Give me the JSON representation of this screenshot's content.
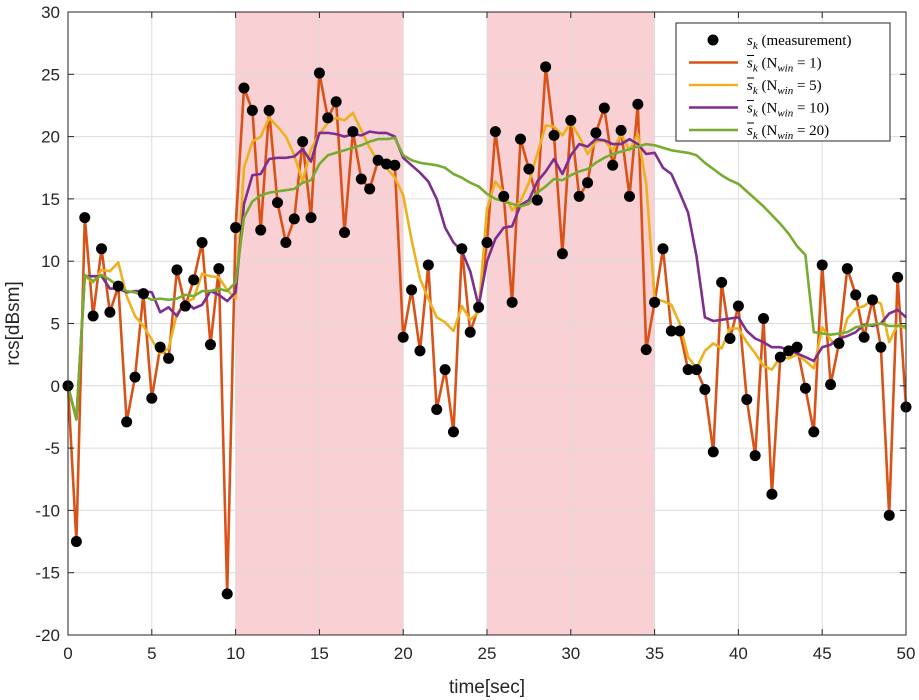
{
  "chart_data": {
    "type": "line",
    "title": "",
    "xlabel": "time[sec]",
    "ylabel": "rcs[dBsm]",
    "xlim": [
      0,
      50
    ],
    "ylim": [
      -20,
      30
    ],
    "xticks": [
      0,
      5,
      10,
      15,
      20,
      25,
      30,
      35,
      40,
      45,
      50
    ],
    "yticks": [
      -20,
      -15,
      -10,
      -5,
      0,
      5,
      10,
      15,
      20,
      25,
      30
    ],
    "grid": true,
    "legend_position": "top-right",
    "shaded_intervals": [
      [
        10,
        20
      ],
      [
        25,
        35
      ]
    ],
    "shade_color": "#f9d0d3",
    "series": [
      {
        "name": "s_k (measurement)",
        "legend_main": "s",
        "legend_sub": "k",
        "legend_rest": "(measurement)",
        "kind": "scatter",
        "color": "#000000",
        "x": [
          0,
          0.5,
          1,
          1.5,
          2,
          2.5,
          3,
          3.5,
          4,
          4.5,
          5,
          5.5,
          6,
          6.5,
          7,
          7.5,
          8,
          8.5,
          9,
          9.5,
          10,
          10.5,
          11,
          11.5,
          12,
          12.5,
          13,
          13.5,
          14,
          14.5,
          15,
          15.5,
          16,
          16.5,
          17,
          17.5,
          18,
          18.5,
          19,
          19.5,
          20,
          20.5,
          21,
          21.5,
          22,
          22.5,
          23,
          23.5,
          24,
          24.5,
          25,
          25.5,
          26,
          26.5,
          27,
          27.5,
          28,
          28.5,
          29,
          29.5,
          30,
          30.5,
          31,
          31.5,
          32,
          32.5,
          33,
          33.5,
          34,
          34.5,
          35,
          35.5,
          36,
          36.5,
          37,
          37.5,
          38,
          38.5,
          39,
          39.5,
          40,
          40.5,
          41,
          41.5,
          42,
          42.5,
          43,
          43.5,
          44,
          44.5,
          45,
          45.5,
          46,
          46.5,
          47,
          47.5,
          48,
          48.5,
          49,
          49.5,
          50
        ],
        "y": [
          0,
          -12.5,
          13.5,
          5.6,
          11,
          5.9,
          8,
          -2.9,
          0.7,
          7.4,
          -1,
          3.1,
          2.2,
          9.3,
          6.4,
          8.5,
          11.5,
          3.3,
          9.4,
          -16.7,
          12.7,
          23.9,
          22.1,
          12.5,
          22.1,
          14.7,
          11.5,
          13.4,
          19.6,
          13.5,
          25.1,
          21.5,
          22.8,
          12.3,
          20.4,
          16.6,
          15.8,
          18.1,
          17.8,
          17.7,
          3.9,
          7.7,
          2.8,
          9.7,
          -1.9,
          1.3,
          -3.7,
          11,
          4.3,
          6.3,
          11.5,
          20.4,
          15.2,
          6.7,
          19.8,
          17.4,
          14.9,
          25.6,
          20.1,
          10.6,
          21.3,
          15.2,
          16.3,
          20.3,
          22.3,
          17.7,
          20.5,
          15.2,
          22.6,
          2.9,
          6.7,
          11,
          4.4,
          4.4,
          1.3,
          1.3,
          -0.3,
          -5.3,
          8.3,
          3.8,
          6.4,
          -1.1,
          -5.6,
          5.4,
          -8.7,
          2.3,
          2.8,
          3.1,
          -0.2,
          -3.7,
          9.7,
          0.1,
          3.4,
          9.4,
          7.3,
          3.9,
          6.9,
          3.1,
          -10.4,
          8.7,
          -1.7
        ]
      },
      {
        "name": "s_k (N_win = 1)",
        "legend_main": "s",
        "legend_sub": "k",
        "legend_rest": "(N",
        "legend_sub2": "win",
        "legend_tail": "= 1)",
        "kind": "line",
        "color": "#d95319",
        "x": [
          0,
          0.5,
          1,
          1.5,
          2,
          2.5,
          3,
          3.5,
          4,
          4.5,
          5,
          5.5,
          6,
          6.5,
          7,
          7.5,
          8,
          8.5,
          9,
          9.5,
          10,
          10.5,
          11,
          11.5,
          12,
          12.5,
          13,
          13.5,
          14,
          14.5,
          15,
          15.5,
          16,
          16.5,
          17,
          17.5,
          18,
          18.5,
          19,
          19.5,
          20,
          20.5,
          21,
          21.5,
          22,
          22.5,
          23,
          23.5,
          24,
          24.5,
          25,
          25.5,
          26,
          26.5,
          27,
          27.5,
          28,
          28.5,
          29,
          29.5,
          30,
          30.5,
          31,
          31.5,
          32,
          32.5,
          33,
          33.5,
          34,
          34.5,
          35,
          35.5,
          36,
          36.5,
          37,
          37.5,
          38,
          38.5,
          39,
          39.5,
          40,
          40.5,
          41,
          41.5,
          42,
          42.5,
          43,
          43.5,
          44,
          44.5,
          45,
          45.5,
          46,
          46.5,
          47,
          47.5,
          48,
          48.5,
          49,
          49.5,
          50
        ],
        "y": [
          0,
          -12.5,
          13.5,
          5.6,
          11,
          5.9,
          8,
          -2.9,
          0.7,
          7.4,
          -1,
          3.1,
          2.2,
          9.3,
          6.4,
          8.5,
          11.5,
          3.3,
          9.4,
          -16.7,
          12.7,
          23.9,
          22.1,
          12.5,
          22.1,
          14.7,
          11.5,
          13.4,
          19.6,
          13.5,
          25.1,
          21.5,
          22.8,
          12.3,
          20.4,
          16.6,
          15.8,
          18.1,
          17.8,
          17.7,
          3.9,
          7.7,
          2.8,
          9.7,
          -1.9,
          1.3,
          -3.7,
          11,
          4.3,
          6.3,
          11.5,
          20.4,
          15.2,
          6.7,
          19.8,
          17.4,
          14.9,
          25.6,
          20.1,
          10.6,
          21.3,
          15.2,
          16.3,
          20.3,
          22.3,
          17.7,
          20.5,
          15.2,
          22.6,
          2.9,
          6.7,
          11,
          4.4,
          4.4,
          1.3,
          1.3,
          -0.3,
          -5.3,
          8.3,
          3.8,
          6.4,
          -1.1,
          -5.6,
          5.4,
          -8.7,
          2.3,
          2.8,
          3.1,
          -0.2,
          -3.7,
          9.7,
          0.1,
          3.4,
          9.4,
          7.3,
          3.9,
          6.9,
          3.1,
          -10.4,
          8.7,
          -1.7
        ]
      },
      {
        "name": "s_k (N_win = 5)",
        "legend_main": "s",
        "legend_sub": "k",
        "legend_rest": "(N",
        "legend_sub2": "win",
        "legend_tail": "= 5)",
        "kind": "line",
        "color": "#edb120",
        "x": [
          0,
          0.5,
          1,
          1.5,
          2,
          2.5,
          3,
          3.5,
          4,
          4.5,
          5,
          5.5,
          6,
          6.5,
          7,
          7.5,
          8,
          8.5,
          9,
          9.5,
          10,
          10.5,
          11,
          11.5,
          12,
          12.5,
          13,
          13.5,
          14,
          14.5,
          15,
          15.5,
          16,
          16.5,
          17,
          17.5,
          18,
          18.5,
          19,
          19.5,
          20,
          20.5,
          21,
          21.5,
          22,
          22.5,
          23,
          23.5,
          24,
          24.5,
          25,
          25.5,
          26,
          26.5,
          27,
          27.5,
          28,
          28.5,
          29,
          29.5,
          30,
          30.5,
          31,
          31.5,
          32,
          32.5,
          33,
          33.5,
          34,
          34.5,
          35,
          35.5,
          36,
          36.5,
          37,
          37.5,
          38,
          38.5,
          39,
          39.5,
          40,
          40.5,
          41,
          41.5,
          42,
          42.5,
          43,
          43.5,
          44,
          44.5,
          45,
          45.5,
          46,
          46.5,
          47,
          47.5,
          48,
          48.5,
          49,
          49.5,
          50
        ],
        "y": [
          0,
          -2.7,
          8.8,
          8.3,
          9.3,
          9.2,
          9.9,
          7.2,
          5.6,
          4.8,
          3.7,
          2.6,
          3.0,
          5.8,
          6.7,
          7.0,
          9.0,
          8.8,
          8.7,
          7.7,
          7.0,
          17.5,
          19.6,
          20.0,
          21.5,
          20.8,
          20.0,
          18.5,
          16.4,
          19.0,
          20.2,
          21.1,
          21.5,
          21.3,
          21.9,
          20.5,
          19.1,
          18.0,
          17.5,
          16.7,
          15.3,
          11.7,
          8.6,
          7.0,
          5.5,
          5.1,
          4.4,
          6.4,
          5.3,
          5.9,
          14.2,
          16.4,
          15.5,
          14.1,
          14.8,
          16.3,
          18.6,
          20.9,
          20.8,
          20.1,
          21.1,
          20.0,
          18.6,
          19.6,
          19.7,
          18.9,
          20.2,
          18.9,
          20.2,
          16.2,
          7.0,
          6.8,
          6.5,
          5.0,
          2.3,
          1.4,
          2.8,
          3.4,
          3.0,
          4.6,
          4.6,
          3.5,
          2.6,
          1.6,
          1.3,
          2.3,
          2.2,
          2.5,
          2.0,
          1.4,
          4.7,
          3.7,
          3.0,
          5.4,
          6.2,
          6.4,
          6.9,
          6.6,
          3.5,
          4.9,
          4.6
        ]
      },
      {
        "name": "s_k (N_win = 10)",
        "legend_main": "s",
        "legend_sub": "k",
        "legend_rest": "(N",
        "legend_sub2": "win",
        "legend_tail": "= 10)",
        "kind": "line",
        "color": "#7e2f8e",
        "x": [
          0,
          0.5,
          1,
          1.5,
          2,
          2.5,
          3,
          3.5,
          4,
          4.5,
          5,
          5.5,
          6,
          6.5,
          7,
          7.5,
          8,
          8.5,
          9,
          9.5,
          10,
          10.5,
          11,
          11.5,
          12,
          12.5,
          13,
          13.5,
          14,
          14.5,
          15,
          15.5,
          16,
          16.5,
          17,
          17.5,
          18,
          18.5,
          19,
          19.5,
          20,
          20.5,
          21,
          21.5,
          22,
          22.5,
          23,
          23.5,
          24,
          24.5,
          25,
          25.5,
          26,
          26.5,
          27,
          27.5,
          28,
          28.5,
          29,
          29.5,
          30,
          30.5,
          31,
          31.5,
          32,
          32.5,
          33,
          33.5,
          34,
          34.5,
          35,
          35.5,
          36,
          36.5,
          37,
          37.5,
          38,
          38.5,
          39,
          39.5,
          40,
          40.5,
          41,
          41.5,
          42,
          42.5,
          43,
          43.5,
          44,
          44.5,
          45,
          45.5,
          46,
          46.5,
          47,
          47.5,
          48,
          48.5,
          49,
          49.5,
          50
        ],
        "y": [
          0,
          -2.7,
          8.8,
          8.8,
          8.8,
          7.8,
          7.8,
          7.5,
          7.6,
          7.6,
          7.5,
          5.9,
          6.3,
          5.6,
          6.8,
          6.2,
          6.5,
          7.6,
          7.3,
          6.8,
          7.5,
          14.6,
          16.9,
          17.0,
          18.2,
          18.3,
          18.3,
          18.4,
          19.0,
          18.0,
          20.3,
          20.3,
          20.2,
          20.0,
          20.2,
          20.1,
          20.4,
          20.3,
          20.3,
          20.0,
          18.3,
          17.7,
          17.1,
          16.4,
          15.0,
          12.7,
          11.5,
          10.8,
          9.2,
          6.4,
          10.0,
          11.8,
          12.7,
          12.8,
          14.5,
          14.9,
          16.4,
          17.2,
          18.2,
          17.0,
          18.5,
          19.4,
          19.2,
          19.8,
          19.7,
          19.4,
          19.4,
          19.8,
          19.4,
          18.6,
          18.7,
          17.5,
          17.0,
          15.5,
          13.9,
          10.4,
          5.5,
          5.2,
          5.3,
          5.4,
          5.5,
          4.4,
          3.8,
          3.5,
          3.1,
          3.1,
          2.9,
          2.6,
          2.3,
          2.0,
          3.1,
          3.3,
          3.8,
          4.0,
          4.3,
          4.9,
          4.8,
          5.0,
          5.8,
          6.1,
          5.5
        ]
      },
      {
        "name": "s_k (N_win = 20)",
        "legend_main": "s",
        "legend_sub": "k",
        "legend_rest": "(N",
        "legend_sub2": "win",
        "legend_tail": "= 20)",
        "kind": "line",
        "color": "#77ac30",
        "x": [
          0,
          0.5,
          1,
          1.5,
          2,
          2.5,
          3,
          3.5,
          4,
          4.5,
          5,
          5.5,
          6,
          6.5,
          7,
          7.5,
          8,
          8.5,
          9,
          9.5,
          10,
          10.5,
          11,
          11.5,
          12,
          12.5,
          13,
          13.5,
          14,
          14.5,
          15,
          15.5,
          16,
          16.5,
          17,
          17.5,
          18,
          18.5,
          19,
          19.5,
          20,
          20.5,
          21,
          21.5,
          22,
          22.5,
          23,
          23.5,
          24,
          24.5,
          25,
          25.5,
          26,
          26.5,
          27,
          27.5,
          28,
          28.5,
          29,
          29.5,
          30,
          30.5,
          31,
          31.5,
          32,
          32.5,
          33,
          33.5,
          34,
          34.5,
          35,
          35.5,
          36,
          36.5,
          37,
          37.5,
          38,
          38.5,
          39,
          39.5,
          40,
          40.5,
          41,
          41.5,
          42,
          42.5,
          43,
          43.5,
          44,
          44.5,
          45,
          45.5,
          46,
          46.5,
          47,
          47.5,
          48,
          48.5,
          49,
          49.5,
          50
        ],
        "y": [
          0,
          -2.7,
          8.9,
          8.4,
          8.9,
          8.5,
          8.0,
          7.6,
          7.5,
          7.2,
          6.9,
          7.0,
          6.9,
          7.0,
          7.3,
          7.2,
          7.6,
          7.6,
          7.8,
          7.6,
          8.3,
          13.5,
          14.8,
          15.3,
          15.5,
          15.6,
          15.7,
          15.8,
          16.3,
          16.5,
          17.8,
          18.5,
          18.7,
          18.9,
          19.1,
          19.3,
          19.6,
          19.8,
          19.8,
          19.9,
          18.5,
          18.1,
          17.9,
          17.8,
          17.7,
          17.5,
          17.0,
          16.7,
          16.3,
          16.0,
          15.4,
          15.0,
          14.8,
          14.6,
          14.4,
          14.6,
          15.5,
          16.0,
          16.6,
          16.5,
          16.9,
          17.2,
          17.4,
          17.9,
          18.3,
          18.6,
          18.8,
          19.0,
          19.2,
          19.4,
          19.3,
          19.1,
          18.9,
          18.8,
          18.7,
          18.5,
          17.9,
          17.4,
          16.9,
          16.5,
          16.2,
          15.6,
          15.0,
          14.4,
          13.7,
          13.0,
          12.2,
          11.2,
          10.5,
          4.3,
          4.2,
          4.1,
          4.2,
          4.3,
          4.7,
          4.8,
          4.9,
          5.0,
          4.8,
          4.8,
          4.8
        ]
      }
    ]
  }
}
